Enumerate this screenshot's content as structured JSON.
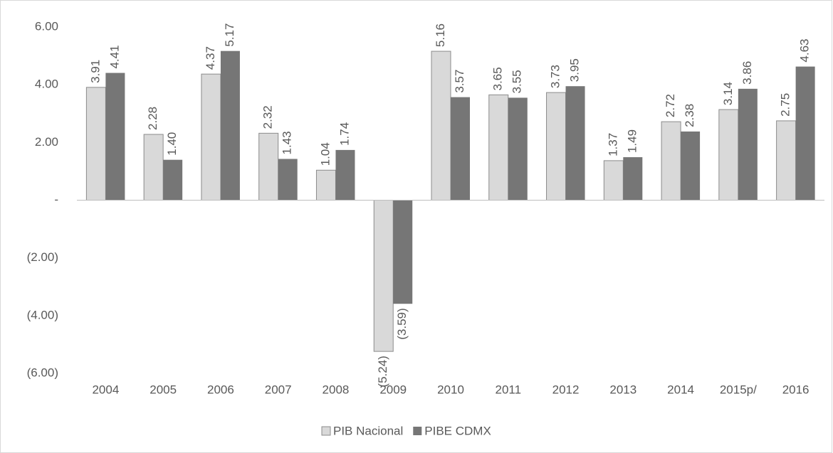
{
  "chart_data": {
    "type": "bar",
    "categories": [
      "2004",
      "2005",
      "2006",
      "2007",
      "2008",
      "2009",
      "2010",
      "2011",
      "2012",
      "2013",
      "2014",
      "2015p/",
      "2016"
    ],
    "series": [
      {
        "name": "PIB Nacional",
        "color": "#d9d9d9",
        "values": [
          3.91,
          2.28,
          4.37,
          2.32,
          1.04,
          -5.24,
          5.16,
          3.65,
          3.73,
          1.37,
          2.72,
          3.14,
          2.75
        ],
        "value_labels": [
          "3.91",
          "2.28",
          "4.37",
          "2.32",
          "1.04",
          "(5.24)",
          "5.16",
          "3.65",
          "3.73",
          "1.37",
          "2.72",
          "3.14",
          "2.75"
        ]
      },
      {
        "name": "PIBE CDMX",
        "color": "#767676",
        "values": [
          4.41,
          1.4,
          5.17,
          1.43,
          1.74,
          -3.59,
          3.57,
          3.55,
          3.95,
          1.49,
          2.38,
          3.86,
          4.63
        ],
        "value_labels": [
          "4.41",
          "1.40",
          "5.17",
          "1.43",
          "1.74",
          "(3.59)",
          "3.57",
          "3.55",
          "3.95",
          "1.49",
          "2.38",
          "3.86",
          "4.63"
        ]
      }
    ],
    "ylim": [
      -6,
      6
    ],
    "yticks": [
      {
        "value": 6,
        "label": "6.00"
      },
      {
        "value": 4,
        "label": "4.00"
      },
      {
        "value": 2,
        "label": "2.00"
      },
      {
        "value": 0,
        "label": "-"
      },
      {
        "value": -2,
        "label": "(2.00)"
      },
      {
        "value": -4,
        "label": "(4.00)"
      },
      {
        "value": -6,
        "label": "(6.00)"
      }
    ],
    "legend": "bottom",
    "grid": false
  }
}
